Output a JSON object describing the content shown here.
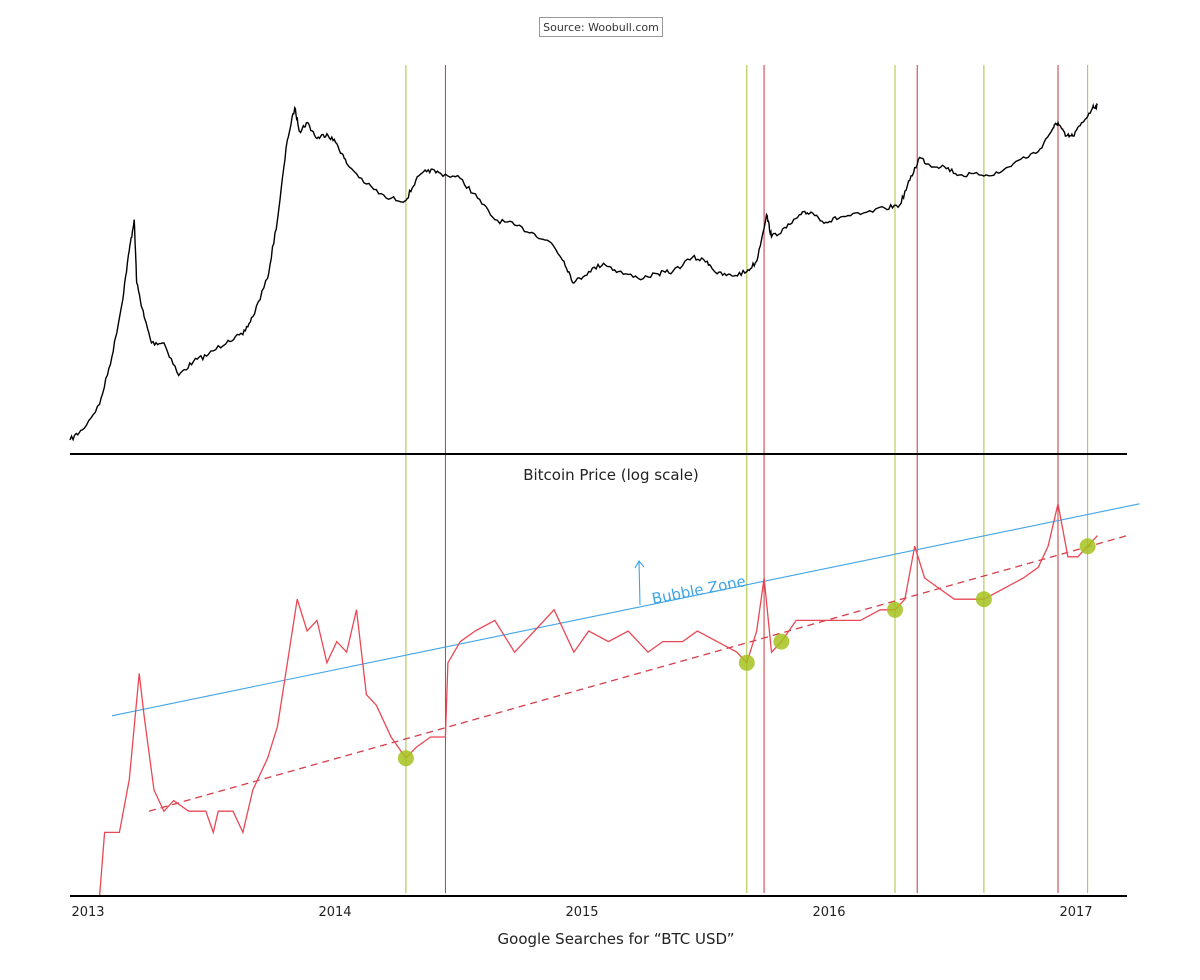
{
  "source": "Source: Woobull.com",
  "chart_data": [
    {
      "type": "line",
      "title": "Bitcoin Price (log scale)",
      "scale": "log",
      "series": [
        {
          "color": "#000000",
          "points": [
            [
              2013.0,
              50
            ],
            [
              2013.05,
              55
            ],
            [
              2013.12,
              70
            ],
            [
              2013.17,
              110
            ],
            [
              2013.21,
              180
            ],
            [
              2013.24,
              300
            ],
            [
              2013.26,
              400
            ],
            [
              2013.27,
              220
            ],
            [
              2013.3,
              160
            ],
            [
              2013.33,
              125
            ],
            [
              2013.38,
              125
            ],
            [
              2013.44,
              92
            ],
            [
              2013.5,
              105
            ],
            [
              2013.56,
              112
            ],
            [
              2013.64,
              128
            ],
            [
              2013.7,
              135
            ],
            [
              2013.74,
              160
            ],
            [
              2013.8,
              230
            ],
            [
              2013.84,
              400
            ],
            [
              2013.88,
              850
            ],
            [
              2013.91,
              1150
            ],
            [
              2013.93,
              920
            ],
            [
              2013.96,
              1000
            ],
            [
              2014.0,
              860
            ],
            [
              2014.04,
              900
            ],
            [
              2014.08,
              820
            ],
            [
              2014.12,
              680
            ],
            [
              2014.2,
              560
            ],
            [
              2014.28,
              490
            ],
            [
              2014.36,
              480
            ],
            [
              2014.4,
              580
            ],
            [
              2014.45,
              640
            ],
            [
              2014.5,
              620
            ],
            [
              2014.58,
              590
            ],
            [
              2014.65,
              490
            ],
            [
              2014.72,
              400
            ],
            [
              2014.8,
              380
            ],
            [
              2014.88,
              350
            ],
            [
              2014.95,
              320
            ],
            [
              2015.0,
              270
            ],
            [
              2015.04,
              220
            ],
            [
              2015.1,
              245
            ],
            [
              2015.16,
              265
            ],
            [
              2015.22,
              245
            ],
            [
              2015.3,
              230
            ],
            [
              2015.38,
              240
            ],
            [
              2015.44,
              245
            ],
            [
              2015.52,
              280
            ],
            [
              2015.58,
              270
            ],
            [
              2015.62,
              240
            ],
            [
              2015.68,
              235
            ],
            [
              2015.74,
              245
            ],
            [
              2015.78,
              270
            ],
            [
              2015.82,
              420
            ],
            [
              2015.84,
              340
            ],
            [
              2015.9,
              370
            ],
            [
              2015.96,
              420
            ],
            [
              2016.0,
              430
            ],
            [
              2016.06,
              390
            ],
            [
              2016.12,
              410
            ],
            [
              2016.2,
              420
            ],
            [
              2016.3,
              445
            ],
            [
              2016.36,
              460
            ],
            [
              2016.4,
              580
            ],
            [
              2016.44,
              720
            ],
            [
              2016.48,
              670
            ],
            [
              2016.54,
              660
            ],
            [
              2016.6,
              610
            ],
            [
              2016.68,
              610
            ],
            [
              2016.76,
              620
            ],
            [
              2016.84,
              700
            ],
            [
              2016.92,
              760
            ],
            [
              2016.98,
              950
            ],
            [
              2017.0,
              1000
            ],
            [
              2017.03,
              880
            ],
            [
              2017.06,
              880
            ],
            [
              2017.1,
              1000
            ],
            [
              2017.14,
              1150
            ],
            [
              2017.16,
              1180
            ]
          ]
        }
      ],
      "highlights": {
        "green_x": [
          2014.36,
          2015.74,
          2016.34,
          2016.7,
          2017.12
        ],
        "red_x": [
          2014.52,
          2015.81,
          2016.43,
          2017.0
        ]
      }
    },
    {
      "type": "line",
      "title": "Google Searches for “BTC USD”",
      "x_ticks": [
        "2013",
        "2014",
        "2015",
        "2016",
        "2017"
      ],
      "x_range": [
        2013.0,
        2017.2
      ],
      "annotation": "Bubble Zone",
      "series": [
        {
          "color": "#e84855",
          "points": [
            [
              2013.12,
              0
            ],
            [
              2013.14,
              6
            ],
            [
              2013.2,
              6
            ],
            [
              2013.24,
              11
            ],
            [
              2013.28,
              21
            ],
            [
              2013.3,
              17
            ],
            [
              2013.34,
              10
            ],
            [
              2013.38,
              8
            ],
            [
              2013.42,
              9
            ],
            [
              2013.48,
              8
            ],
            [
              2013.55,
              8
            ],
            [
              2013.58,
              6
            ],
            [
              2013.6,
              8
            ],
            [
              2013.66,
              8
            ],
            [
              2013.7,
              6
            ],
            [
              2013.74,
              10
            ],
            [
              2013.8,
              13
            ],
            [
              2013.84,
              16
            ],
            [
              2013.88,
              22
            ],
            [
              2013.92,
              28
            ],
            [
              2013.96,
              25
            ],
            [
              2014.0,
              26
            ],
            [
              2014.04,
              22
            ],
            [
              2014.08,
              24
            ],
            [
              2014.12,
              23
            ],
            [
              2014.16,
              27
            ],
            [
              2014.2,
              19
            ],
            [
              2014.24,
              18
            ],
            [
              2014.3,
              15
            ],
            [
              2014.36,
              13
            ],
            [
              2014.4,
              14
            ],
            [
              2014.46,
              15
            ],
            [
              2014.52,
              15
            ],
            [
              2014.53,
              22
            ],
            [
              2014.58,
              24
            ],
            [
              2014.64,
              25
            ],
            [
              2014.72,
              26
            ],
            [
              2014.8,
              23
            ],
            [
              2014.88,
              25
            ],
            [
              2014.96,
              27
            ],
            [
              2015.04,
              23
            ],
            [
              2015.1,
              25
            ],
            [
              2015.18,
              24
            ],
            [
              2015.26,
              25
            ],
            [
              2015.34,
              23
            ],
            [
              2015.4,
              24
            ],
            [
              2015.48,
              24
            ],
            [
              2015.54,
              25
            ],
            [
              2015.62,
              24
            ],
            [
              2015.7,
              23
            ],
            [
              2015.74,
              22
            ],
            [
              2015.78,
              25
            ],
            [
              2015.81,
              30
            ],
            [
              2015.84,
              23
            ],
            [
              2015.88,
              24
            ],
            [
              2015.94,
              26
            ],
            [
              2016.0,
              26
            ],
            [
              2016.06,
              26
            ],
            [
              2016.12,
              26
            ],
            [
              2016.2,
              26
            ],
            [
              2016.28,
              27
            ],
            [
              2016.34,
              27
            ],
            [
              2016.38,
              28
            ],
            [
              2016.42,
              33
            ],
            [
              2016.46,
              30
            ],
            [
              2016.52,
              29
            ],
            [
              2016.58,
              28
            ],
            [
              2016.64,
              28
            ],
            [
              2016.7,
              28
            ],
            [
              2016.78,
              29
            ],
            [
              2016.86,
              30
            ],
            [
              2016.92,
              31
            ],
            [
              2016.96,
              33
            ],
            [
              2017.0,
              37
            ],
            [
              2017.04,
              32
            ],
            [
              2017.08,
              32
            ],
            [
              2017.12,
              33
            ],
            [
              2017.16,
              34
            ]
          ]
        }
      ],
      "resistance": {
        "color": "#3fa4e6",
        "from": [
          2013.17,
          17
        ],
        "to": [
          2017.33,
          37
        ]
      },
      "support": {
        "color": "#d43c4a",
        "dash": true,
        "from": [
          2013.32,
          8
        ],
        "to": [
          2017.28,
          34
        ]
      },
      "support_touches": [
        [
          2014.36,
          13
        ],
        [
          2015.74,
          22
        ],
        [
          2015.88,
          24
        ],
        [
          2016.34,
          27
        ],
        [
          2016.7,
          28
        ],
        [
          2017.12,
          33
        ]
      ],
      "highlights": {
        "green_x": [
          2014.36,
          2015.74,
          2016.34,
          2016.7,
          2017.12
        ],
        "red_x": [
          2014.52,
          2015.81,
          2016.43,
          2017.0
        ]
      }
    }
  ],
  "colors": {
    "green_marker": "#a4c21f",
    "green_line": "#a8c23c",
    "red_line": "#c0393b"
  }
}
